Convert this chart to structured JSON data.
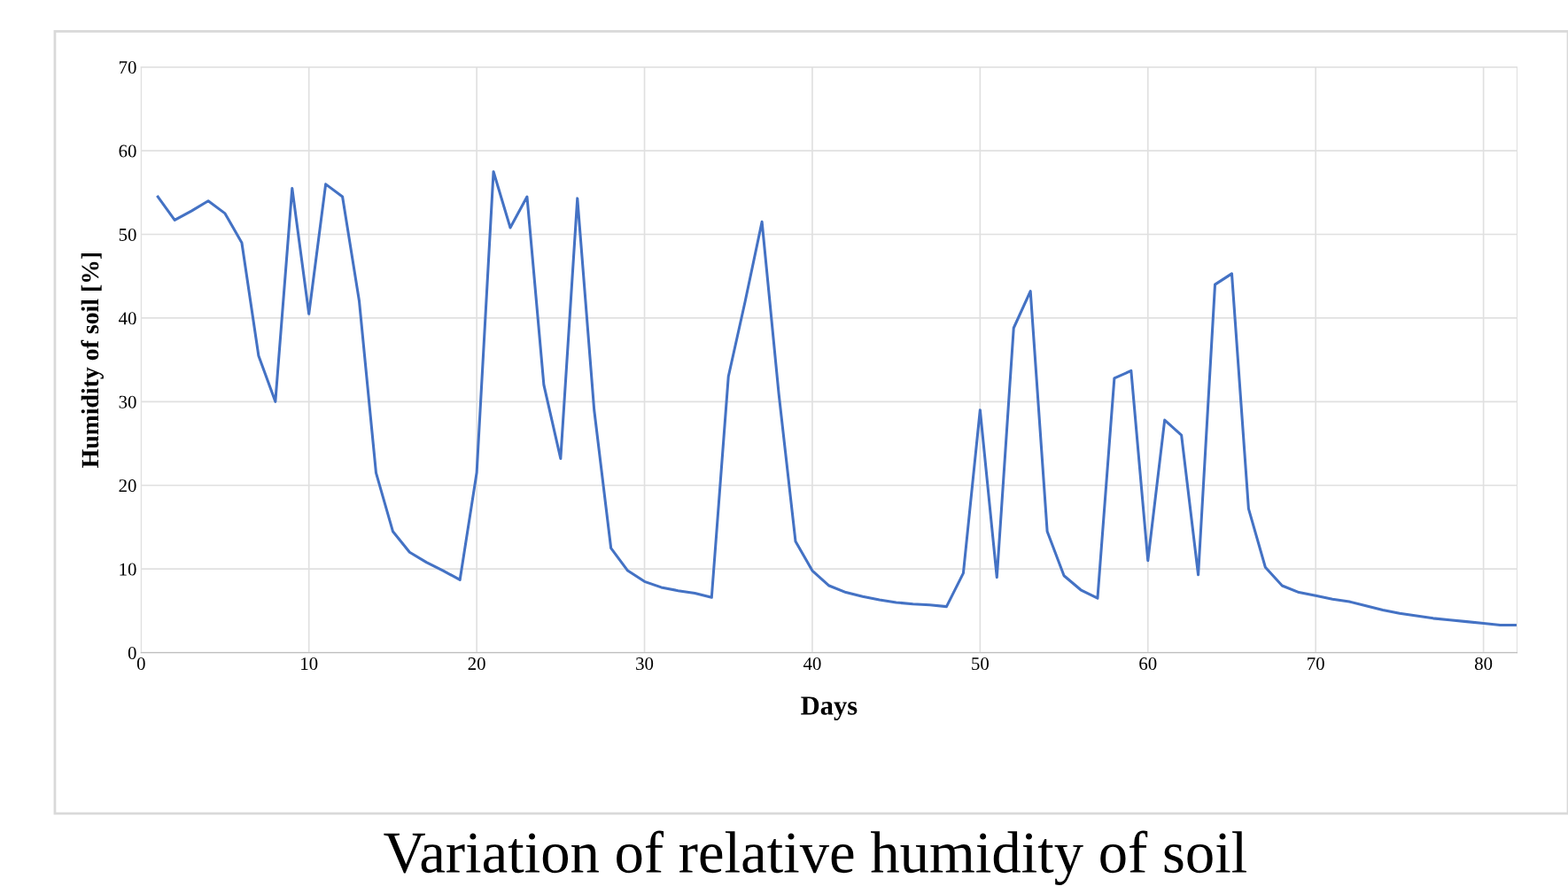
{
  "chart_data": {
    "type": "line",
    "title": "Variation of relative humidity of soil",
    "xlabel": "Days",
    "ylabel": "Humidity of soil [%]",
    "x": [
      1,
      2,
      3,
      4,
      5,
      6,
      7,
      8,
      9,
      10,
      11,
      12,
      13,
      14,
      15,
      16,
      17,
      18,
      19,
      20,
      21,
      22,
      23,
      24,
      25,
      26,
      27,
      28,
      29,
      30,
      31,
      32,
      33,
      34,
      35,
      36,
      37,
      38,
      39,
      40,
      41,
      42,
      43,
      44,
      45,
      46,
      47,
      48,
      49,
      50,
      51,
      52,
      53,
      54,
      55,
      56,
      57,
      58,
      59,
      60,
      61,
      62,
      63,
      64,
      65,
      66,
      67,
      68,
      69,
      70,
      71,
      72,
      73,
      74,
      75,
      76,
      77,
      78,
      79,
      80,
      81,
      82
    ],
    "series": [
      {
        "color": "#4472c4",
        "values": [
          54.5,
          51.7,
          52.8,
          54,
          52.5,
          49,
          35.5,
          30,
          55.5,
          40.5,
          56,
          54.5,
          42,
          21.5,
          14.5,
          12,
          10.8,
          9.8,
          8.7,
          21.5,
          57.5,
          50.8,
          54.5,
          32,
          23.2,
          54.3,
          29,
          12.5,
          9.8,
          8.5,
          7.8,
          7.4,
          7.1,
          6.6,
          33,
          42,
          51.5,
          31,
          13.3,
          9.8,
          8,
          7.2,
          6.7,
          6.3,
          6,
          5.8,
          5.7,
          5.5,
          9.5,
          29,
          9,
          38.8,
          43.2,
          14.5,
          9.2,
          7.5,
          6.5,
          32.8,
          33.7,
          11,
          27.8,
          26,
          9.3,
          44,
          45.3,
          17.2,
          10.2,
          8,
          7.2,
          6.8,
          6.4,
          6.1,
          5.6,
          5.1,
          4.7,
          4.4,
          4.1,
          3.9,
          3.7,
          3.5,
          3.3,
          3.3
        ]
      }
    ],
    "xlim": [
      0,
      82
    ],
    "xticks": [
      0,
      10,
      20,
      30,
      40,
      50,
      60,
      70,
      80
    ],
    "ylim": [
      0,
      70
    ],
    "yticks": [
      0,
      10,
      20,
      30,
      40,
      50,
      60,
      70
    ],
    "grid": true,
    "marker": "none",
    "line_style": "solid",
    "legend": false
  }
}
